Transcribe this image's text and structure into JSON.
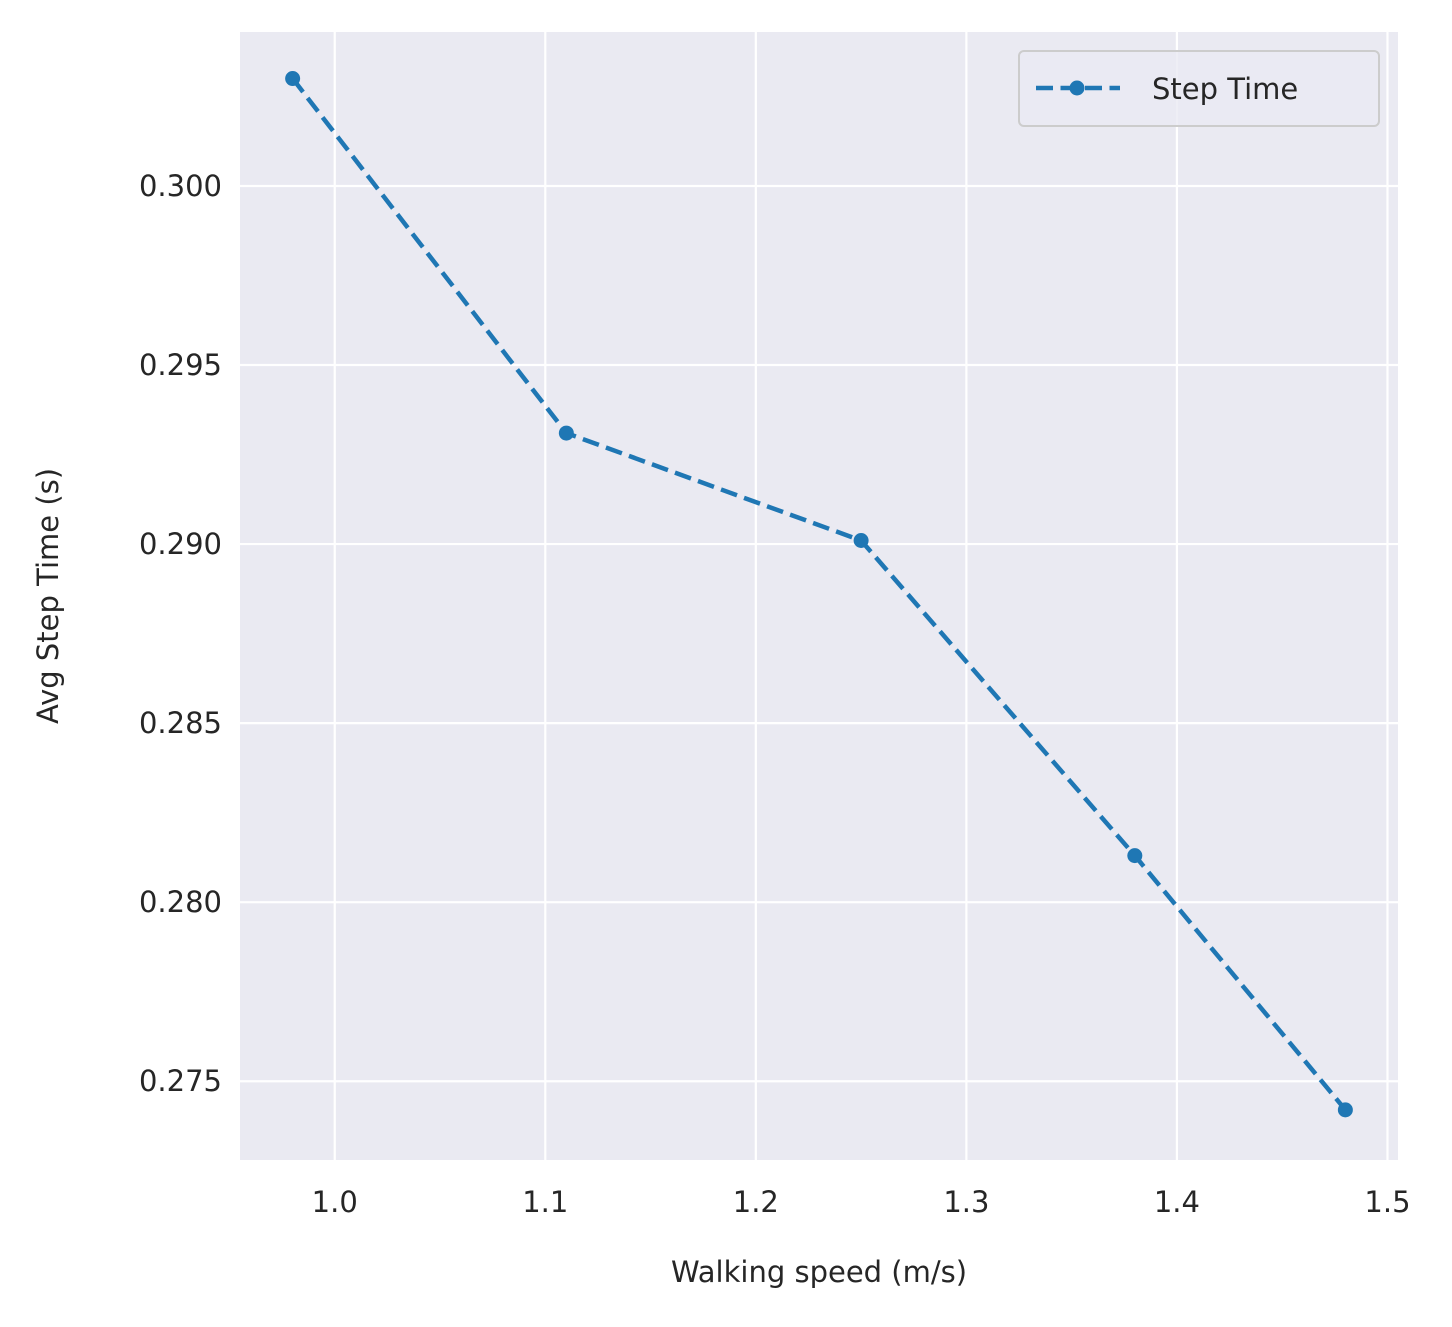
{
  "chart_data": {
    "type": "line",
    "title": "",
    "xlabel": "Walking speed (m/s)",
    "ylabel": "Avg Step Time (s)",
    "xlim": [
      0.955,
      1.505
    ],
    "ylim": [
      0.2728,
      0.3043
    ],
    "xticks": [
      "1.0",
      "1.1",
      "1.2",
      "1.3",
      "1.4",
      "1.5"
    ],
    "yticks": [
      "0.275",
      "0.280",
      "0.285",
      "0.290",
      "0.295",
      "0.300"
    ],
    "grid": true,
    "legend_position": "top-right",
    "series": [
      {
        "name": "Step Time",
        "color": "#1f77b4",
        "line_style": "dashed",
        "marker": "circle",
        "x": [
          0.98,
          1.11,
          1.25,
          1.38,
          1.48
        ],
        "y": [
          0.303,
          0.2931,
          0.2901,
          0.2813,
          0.2742
        ]
      }
    ],
    "background_color": "#eaeaf2",
    "grid_color": "#ffffff"
  }
}
